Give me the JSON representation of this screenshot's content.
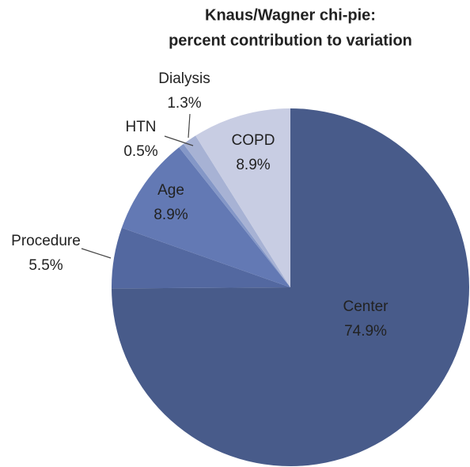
{
  "chart_data": {
    "type": "pie",
    "title": [
      "Knaus/Wagner chi-pie:",
      "percent contribution to variation"
    ],
    "categories": [
      "Center",
      "Procedure",
      "Age",
      "HTN",
      "Dialysis",
      "COPD"
    ],
    "values": [
      74.9,
      5.5,
      8.9,
      0.5,
      1.3,
      8.9
    ],
    "value_labels": [
      "74.9%",
      "5.5%",
      "8.9%",
      "0.5%",
      "1.3%",
      "8.9%"
    ],
    "colors": [
      "#485b8a",
      "#5368a0",
      "#6379b4",
      "#8497c7",
      "#a7b2d4",
      "#c8cde3"
    ]
  }
}
